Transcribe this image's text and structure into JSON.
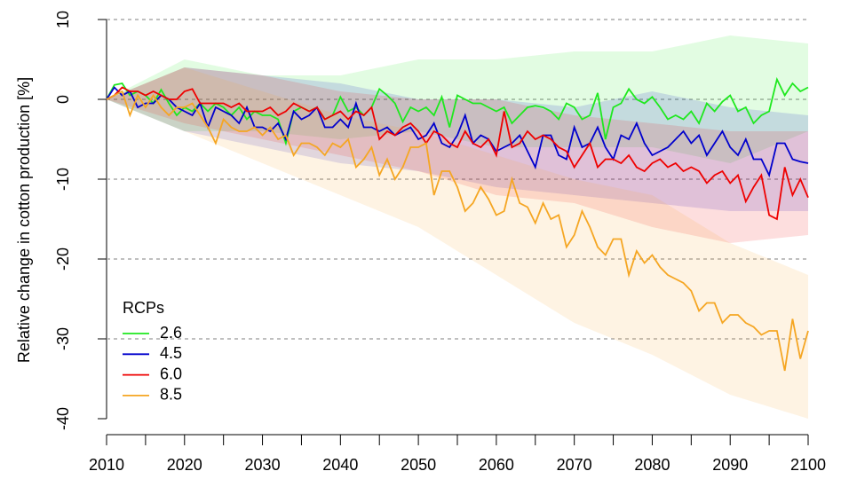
{
  "chart_data": {
    "type": "line",
    "ylabel": "Relative change in cotton production [%]",
    "legend_title": "RCPs",
    "legend_position": "bottom-left",
    "grid": true,
    "xlim": [
      2010,
      2100
    ],
    "ylim": [
      -40,
      10
    ],
    "xticks": [
      2010,
      2020,
      2030,
      2040,
      2050,
      2060,
      2070,
      2080,
      2090,
      2100
    ],
    "xminor_ticks": [
      2015,
      2025,
      2035,
      2045,
      2055,
      2065,
      2075,
      2085,
      2095
    ],
    "yticks": [
      10,
      0,
      -10,
      -20,
      -30,
      -40
    ],
    "x": [
      2010,
      2011,
      2012,
      2013,
      2014,
      2015,
      2016,
      2017,
      2018,
      2019,
      2020,
      2021,
      2022,
      2023,
      2024,
      2025,
      2026,
      2027,
      2028,
      2029,
      2030,
      2031,
      2032,
      2033,
      2034,
      2035,
      2036,
      2037,
      2038,
      2039,
      2040,
      2041,
      2042,
      2043,
      2044,
      2045,
      2046,
      2047,
      2048,
      2049,
      2050,
      2051,
      2052,
      2053,
      2054,
      2055,
      2056,
      2057,
      2058,
      2059,
      2060,
      2061,
      2062,
      2063,
      2064,
      2065,
      2066,
      2067,
      2068,
      2069,
      2070,
      2071,
      2072,
      2073,
      2074,
      2075,
      2076,
      2077,
      2078,
      2079,
      2080,
      2081,
      2082,
      2083,
      2084,
      2085,
      2086,
      2087,
      2088,
      2089,
      2090,
      2091,
      2092,
      2093,
      2094,
      2095,
      2096,
      2097,
      2098,
      2099,
      2100
    ],
    "band_x": [
      2010,
      2020,
      2030,
      2040,
      2050,
      2060,
      2070,
      2080,
      2090,
      2100
    ],
    "series": [
      {
        "name": "2.6",
        "color": "#1ee81e",
        "values": [
          0,
          1.8,
          2.0,
          0.5,
          1.0,
          0.5,
          -0.5,
          1.2,
          -0.5,
          -2.0,
          -1.0,
          -1.5,
          -0.5,
          -1.5,
          -0.5,
          -1.0,
          -2.0,
          -1.0,
          -2.5,
          -1.5,
          -2.0,
          -2.0,
          -2.5,
          -5.5,
          -1.5,
          -1.0,
          -1.5,
          -1.0,
          -2.5,
          -2.0,
          0.3,
          -1.5,
          -1.0,
          -2.0,
          -1.0,
          1.3,
          0.5,
          -0.5,
          -2.8,
          -1.0,
          -1.5,
          -1.0,
          -2.0,
          0.3,
          -3.5,
          0.5,
          0,
          -0.5,
          -0.5,
          -1.0,
          -1.5,
          -1.0,
          -3.0,
          -2.0,
          -1.0,
          -0.8,
          -1.0,
          -1.5,
          -2.5,
          -0.5,
          -1.0,
          -2.5,
          -2.0,
          0.8,
          -5.0,
          -1.0,
          -0.5,
          1.3,
          0,
          -0.5,
          0.3,
          -1.0,
          -2.5,
          -2.0,
          -2.5,
          -1.5,
          -3.0,
          -0.5,
          -1.5,
          -0.3,
          0.5,
          -1.5,
          -1.0,
          -3.0,
          -2.0,
          -1.5,
          2.5,
          0.5,
          2.0,
          1.0,
          1.5
        ],
        "upper": [
          0,
          5,
          3,
          3,
          5,
          5,
          6,
          6,
          8,
          7
        ],
        "lower": [
          0,
          -4,
          -4,
          -5,
          -4,
          -6,
          -6,
          -6,
          -8,
          -4
        ]
      },
      {
        "name": "4.5",
        "color": "#0000cc",
        "values": [
          0,
          1.5,
          0.5,
          1.0,
          -1.0,
          -0.5,
          -0.5,
          0.5,
          0,
          -1.0,
          -1.5,
          -2.0,
          -0.5,
          -3.5,
          -1.0,
          -1.5,
          -2.0,
          -3.0,
          -1.0,
          -3.5,
          -3.5,
          -4.0,
          -3.0,
          -5.0,
          -1.5,
          -2.5,
          -2.0,
          -1.0,
          -3.5,
          -3.5,
          -2.5,
          -3.5,
          -0.5,
          -3.5,
          -3.5,
          -4.0,
          -3.5,
          -4.5,
          -4.0,
          -3.5,
          -5.0,
          -4.5,
          -3.0,
          -5.5,
          -6.0,
          -4.5,
          -2.0,
          -5.5,
          -4.5,
          -5.0,
          -6.5,
          -6.0,
          -5.5,
          -4.5,
          -6.5,
          -8.5,
          -4.5,
          -4.5,
          -7.0,
          -7.5,
          -3.5,
          -6.0,
          -5.5,
          -3.5,
          -6.0,
          -7.5,
          -4.5,
          -5.0,
          -3.0,
          -5.5,
          -7.0,
          -6.5,
          -6.0,
          -5.0,
          -4.0,
          -5.5,
          -4.5,
          -7.0,
          -5.5,
          -4.0,
          -6.0,
          -7.0,
          -5.0,
          -7.5,
          -7.5,
          -9.5,
          -5.5,
          -5.5,
          -7.5,
          -7.8,
          -8.0
        ],
        "upper": [
          0,
          4,
          3,
          2,
          0,
          0,
          -1,
          1,
          -1,
          -2
        ],
        "lower": [
          0,
          -4,
          -6,
          -8,
          -9,
          -11,
          -12,
          -13,
          -14,
          -14
        ]
      },
      {
        "name": "6.0",
        "color": "#ee0000",
        "values": [
          0,
          0.5,
          1.5,
          1.0,
          1.0,
          0.5,
          1.0,
          0.5,
          0,
          0,
          1.0,
          1.3,
          -0.5,
          -0.5,
          -0.5,
          -0.5,
          -1.0,
          -0.5,
          -1.5,
          -1.5,
          -1.5,
          -1.0,
          -2.0,
          -1.5,
          -0.5,
          -1.0,
          -1.5,
          -1.0,
          -2.5,
          -2.0,
          -1.5,
          -2.5,
          -1.5,
          -2.0,
          -1.0,
          -5.0,
          -4.0,
          -4.5,
          -3.5,
          -3.0,
          -4.0,
          -5.5,
          -4.0,
          -4.5,
          -5.5,
          -6.0,
          -4.0,
          -5.5,
          -6.0,
          -5.0,
          -7.0,
          -1.5,
          -6.0,
          -5.5,
          -4.0,
          -5.0,
          -4.5,
          -5.0,
          -6.0,
          -6.5,
          -8.5,
          -7.0,
          -5.5,
          -8.5,
          -7.5,
          -7.5,
          -8.0,
          -7.0,
          -8.5,
          -9.0,
          -8.0,
          -7.5,
          -8.5,
          -8.0,
          -9.0,
          -8.5,
          -9.0,
          -10.5,
          -9.5,
          -9.0,
          -10.5,
          -9.5,
          -12.8,
          -11.0,
          -9.5,
          -14.5,
          -15.0,
          -8.5,
          -12.0,
          -10.0,
          -12.3
        ],
        "upper": [
          0,
          4,
          3,
          1,
          0,
          0,
          -2,
          -3,
          -4,
          -4
        ],
        "lower": [
          0,
          -3,
          -5,
          -7,
          -9,
          -12,
          -13,
          -16,
          -18,
          -17
        ]
      },
      {
        "name": "8.5",
        "color": "#f5a623",
        "values": [
          0,
          0.5,
          1.0,
          -2.0,
          0.5,
          -1.0,
          0.5,
          -1.0,
          -2.0,
          -1.0,
          -1.0,
          -0.5,
          -2.0,
          -3.5,
          -5.5,
          -2.5,
          -3.5,
          -4.0,
          -4.0,
          -3.5,
          -4.5,
          -3.5,
          -5.0,
          -4.5,
          -7.0,
          -5.5,
          -5.5,
          -6.0,
          -7.0,
          -5.5,
          -6.0,
          -5.0,
          -8.5,
          -7.5,
          -6.0,
          -9.5,
          -7.5,
          -10.0,
          -8.5,
          -6.0,
          -6.0,
          -5.5,
          -12.0,
          -9.0,
          -9.0,
          -11.0,
          -14.0,
          -13.0,
          -11.0,
          -12.5,
          -14.5,
          -14.0,
          -10.0,
          -13.0,
          -13.5,
          -15.5,
          -13.0,
          -15.0,
          -14.5,
          -18.5,
          -17.0,
          -14.0,
          -16.0,
          -18.5,
          -19.5,
          -17.5,
          -17.5,
          -22.0,
          -19.0,
          -20.5,
          -19.5,
          -21.0,
          -22.0,
          -22.5,
          -23.0,
          -24.0,
          -26.5,
          -25.5,
          -25.5,
          -28.0,
          -27.0,
          -27.0,
          -28.0,
          -28.5,
          -29.5,
          -29.0,
          -29.0,
          -34.0,
          -27.5,
          -32.5,
          -29.0
        ],
        "upper": [
          0,
          4,
          1,
          -2,
          -4,
          -7,
          -10,
          -12,
          -18,
          -22
        ],
        "lower": [
          0,
          -4,
          -8,
          -12,
          -16,
          -22,
          -28,
          -32,
          -37,
          -40
        ]
      }
    ]
  }
}
